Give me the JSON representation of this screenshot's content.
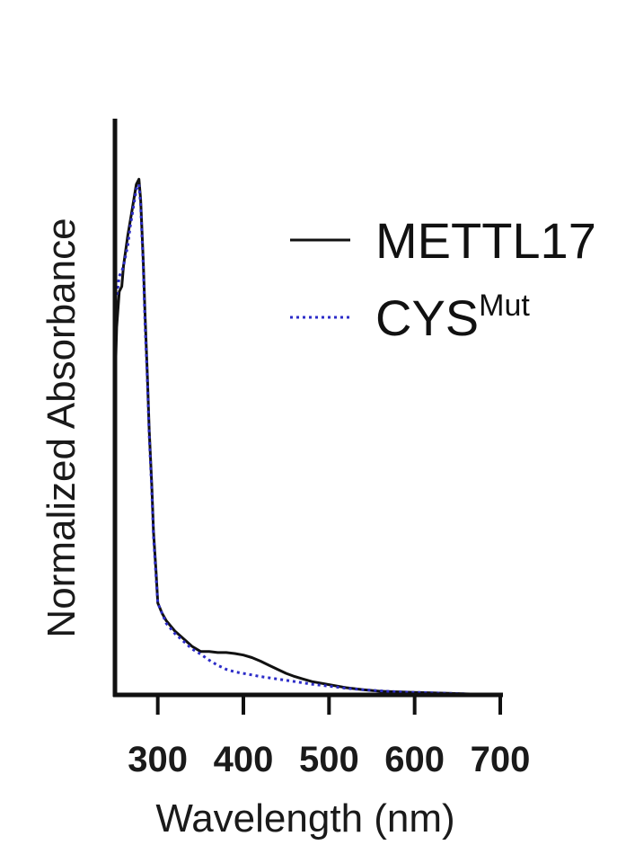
{
  "chart_data": {
    "type": "line",
    "title": "",
    "xlabel": "Wavelength (nm)",
    "ylabel": "Normalized Absorbance",
    "xlim": [
      250,
      700
    ],
    "ylim": [
      0,
      1.1
    ],
    "x_ticks": [
      "300",
      "400",
      "500",
      "600",
      "700"
    ],
    "grid": false,
    "legend_position": "top-right",
    "series": [
      {
        "name": "METTL17",
        "legend_sup": "",
        "color": "#111111",
        "style": "solid",
        "x": [
          250,
          252,
          255,
          258,
          260,
          265,
          268,
          270,
          273,
          275,
          278,
          280,
          283,
          285,
          288,
          290,
          293,
          295,
          298,
          300,
          305,
          310,
          320,
          330,
          340,
          350,
          360,
          370,
          380,
          390,
          400,
          410,
          420,
          430,
          440,
          450,
          460,
          470,
          480,
          500,
          520,
          540,
          560,
          580,
          600,
          620,
          640,
          660,
          680,
          700
        ],
        "y": [
          0.6,
          0.72,
          0.79,
          0.8,
          0.84,
          0.9,
          0.93,
          0.95,
          0.98,
          1.0,
          1.01,
          0.97,
          0.85,
          0.75,
          0.62,
          0.52,
          0.41,
          0.32,
          0.24,
          0.18,
          0.16,
          0.145,
          0.125,
          0.11,
          0.095,
          0.085,
          0.085,
          0.083,
          0.083,
          0.081,
          0.078,
          0.073,
          0.066,
          0.058,
          0.05,
          0.042,
          0.036,
          0.031,
          0.026,
          0.02,
          0.014,
          0.01,
          0.007,
          0.006,
          0.005,
          0.004,
          0.003,
          0.002,
          0.001,
          0.0
        ]
      },
      {
        "name": "CYS",
        "legend_sup": "Mut",
        "color": "#2c2cc8",
        "style": "dotted",
        "x": [
          250,
          252,
          255,
          258,
          260,
          265,
          268,
          270,
          273,
          275,
          278,
          280,
          283,
          285,
          288,
          290,
          293,
          295,
          298,
          300,
          305,
          310,
          320,
          330,
          340,
          350,
          360,
          370,
          380,
          390,
          400,
          410,
          420,
          440,
          460,
          480,
          500,
          520,
          540,
          560,
          580,
          600,
          620,
          640,
          660,
          680,
          700
        ],
        "y": [
          0.85,
          0.78,
          0.82,
          0.83,
          0.84,
          0.88,
          0.92,
          0.94,
          0.97,
          0.99,
          1.0,
          0.96,
          0.84,
          0.73,
          0.61,
          0.51,
          0.4,
          0.31,
          0.23,
          0.18,
          0.16,
          0.14,
          0.12,
          0.105,
          0.09,
          0.08,
          0.068,
          0.058,
          0.05,
          0.045,
          0.042,
          0.039,
          0.036,
          0.031,
          0.026,
          0.021,
          0.017,
          0.013,
          0.01,
          0.008,
          0.006,
          0.005,
          0.004,
          0.003,
          0.002,
          0.001,
          0.0
        ]
      }
    ]
  }
}
